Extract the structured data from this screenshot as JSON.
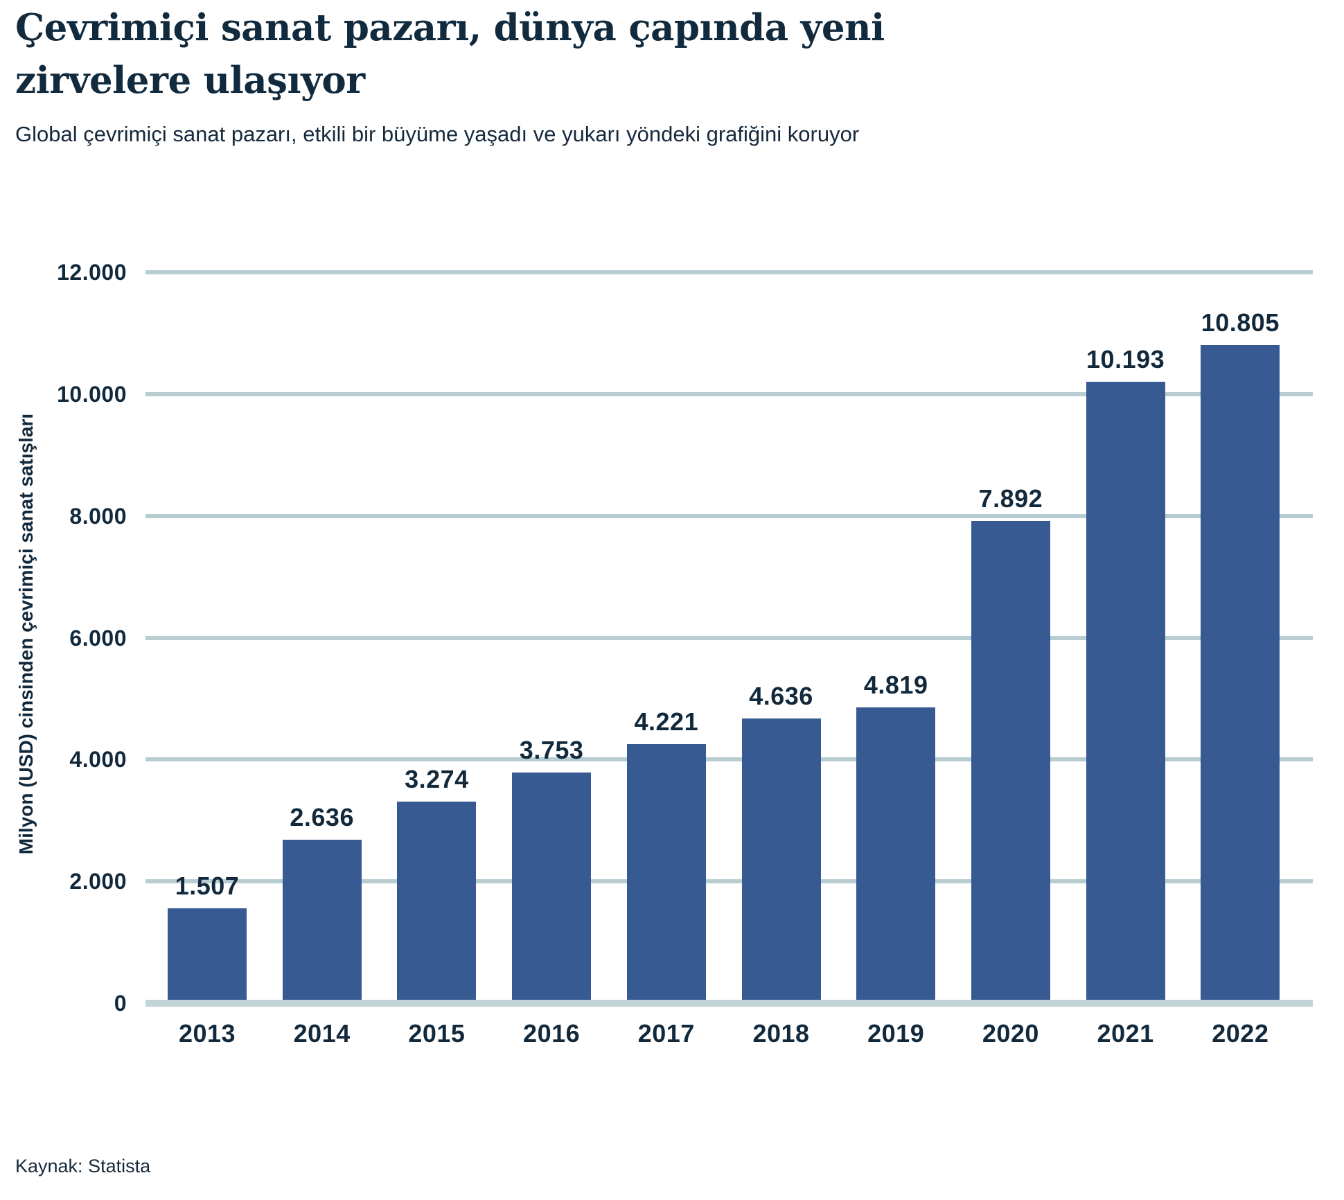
{
  "header": {
    "title": "Çevrimiçi sanat pazarı, dünya çapında yeni zirvelere ulaşıyor",
    "subtitle": "Global çevrimiçi sanat pazarı, etkili bir büyüme yaşadı ve yukarı yöndeki grafiğini koruyor"
  },
  "source": {
    "label": "Kaynak: Statista"
  },
  "colors": {
    "bar": "#375a93",
    "gridline": "#b7cdd2",
    "baseline": "#c3d4d8",
    "title_text": "#112a3e",
    "label_text": "#12293c"
  },
  "chart_data": {
    "type": "bar",
    "title": "Çevrimiçi sanat pazarı, dünya çapında yeni zirvelere ulaşıyor",
    "subtitle": "Global çevrimiçi sanat pazarı, etkili bir büyüme yaşadı ve yukarı yöndeki grafiğini koruyor",
    "ylabel": "Milyon (USD) cinsinden çevrimiçi sanat satışları",
    "xlabel": "",
    "categories": [
      "2013",
      "2014",
      "2015",
      "2016",
      "2017",
      "2018",
      "2019",
      "2020",
      "2021",
      "2022"
    ],
    "values": [
      1507,
      2636,
      3274,
      3753,
      4221,
      4636,
      4819,
      7892,
      10193,
      10805
    ],
    "value_labels": [
      "1.507",
      "2.636",
      "3.274",
      "3.753",
      "4.221",
      "4.636",
      "4.819",
      "7.892",
      "10.193",
      "10.805"
    ],
    "ylim": [
      0,
      12000
    ],
    "yticks": [
      0,
      2000,
      4000,
      6000,
      8000,
      10000,
      12000
    ],
    "ytick_labels": [
      "0",
      "2.000",
      "4.000",
      "6.000",
      "8.000",
      "10.000",
      "12.000"
    ],
    "grid": "horizontal",
    "legend": "none",
    "bar_color": "#375a93",
    "source": "Kaynak: Statista"
  }
}
